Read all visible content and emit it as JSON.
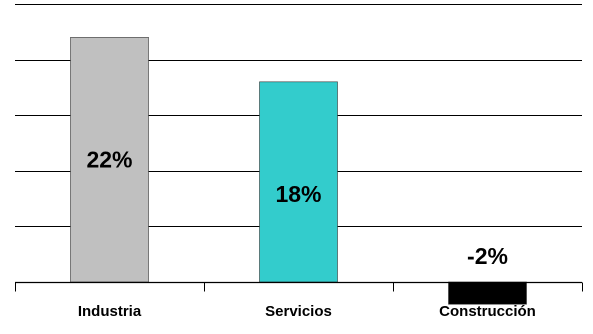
{
  "chart_data": {
    "type": "bar",
    "categories": [
      "Industria",
      "Servicios",
      "Construcción"
    ],
    "values": [
      22,
      18,
      -2
    ],
    "data_labels": [
      "22%",
      "18%",
      "-2%"
    ],
    "colors": [
      "#c0c0c0",
      "#33cccc",
      "#000000"
    ],
    "ylim": [
      -2,
      25
    ],
    "grid": true,
    "title": "",
    "xlabel": "",
    "ylabel": ""
  }
}
